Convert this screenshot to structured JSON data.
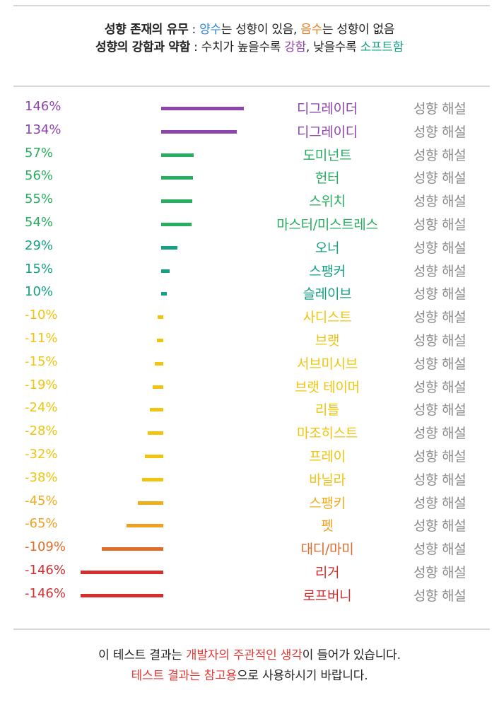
{
  "header": {
    "line1": {
      "label": "성향 존재의 유무",
      "sep": " : ",
      "pos_word": "양수",
      "pos_rest": "는 성향이 있음, ",
      "neg_word": "음수",
      "neg_rest": "는 성향이 없음"
    },
    "line2": {
      "label": "성향의 강함과 약함",
      "sep": " : 수치가 높을수록 ",
      "strong_word": "강함",
      "mid": ", 낮을수록 ",
      "soft_word": "소프트함"
    }
  },
  "colors": {
    "purple": "#8e44ad",
    "green": "#27ae60",
    "teal": "#16a085",
    "yellow": "#f1c40f",
    "orange": "#e67e22",
    "red": "#d32f2f",
    "blue": "#2e86de",
    "gray": "#8a8a8a"
  },
  "chart_data": {
    "type": "bar",
    "categories": [
      "디그레이더",
      "디그레이디",
      "도미넌트",
      "헌터",
      "스위치",
      "마스터/미스트레스",
      "오너",
      "스팽커",
      "슬레이브",
      "사디스트",
      "브랫",
      "서브미시브",
      "브랫 테이머",
      "리틀",
      "마조히스트",
      "프레이",
      "바닐라",
      "스팽키",
      "펫",
      "대디/마미",
      "리거",
      "로프버니"
    ],
    "values": [
      146,
      134,
      57,
      56,
      55,
      54,
      29,
      15,
      10,
      -10,
      -11,
      -15,
      -19,
      -24,
      -28,
      -32,
      -38,
      -45,
      -65,
      -109,
      -146,
      -146
    ],
    "value_labels": [
      "146%",
      "134%",
      "57%",
      "56%",
      "55%",
      "54%",
      "29%",
      "15%",
      "10%",
      "-10%",
      "-11%",
      "-15%",
      "-19%",
      "-24%",
      "-28%",
      "-32%",
      "-38%",
      "-45%",
      "-65%",
      "-109%",
      "-146%",
      "-146%"
    ],
    "row_colors": [
      "#8e44ad",
      "#8e44ad",
      "#27ae60",
      "#27ae60",
      "#27ae60",
      "#27ae60",
      "#16a085",
      "#16a085",
      "#16a085",
      "#f1c40f",
      "#f1c40f",
      "#f1c40f",
      "#f1c40f",
      "#f1c40f",
      "#f1c40f",
      "#f1c40f",
      "#f1c40f",
      "#f0ad1a",
      "#f0a020",
      "#e06c2a",
      "#d32f2f",
      "#d32f2f"
    ],
    "link_label": "성향 해설",
    "xlim": [
      -146,
      146
    ]
  },
  "footer": {
    "line1": {
      "pre": "이 테스트 결과는 ",
      "red": "개발자의 주관적인 생각",
      "post": "이 들어가 있습니다."
    },
    "line2": {
      "red": "테스트 결과는 참고용",
      "post": "으로 사용하시기 바랍니다."
    }
  }
}
